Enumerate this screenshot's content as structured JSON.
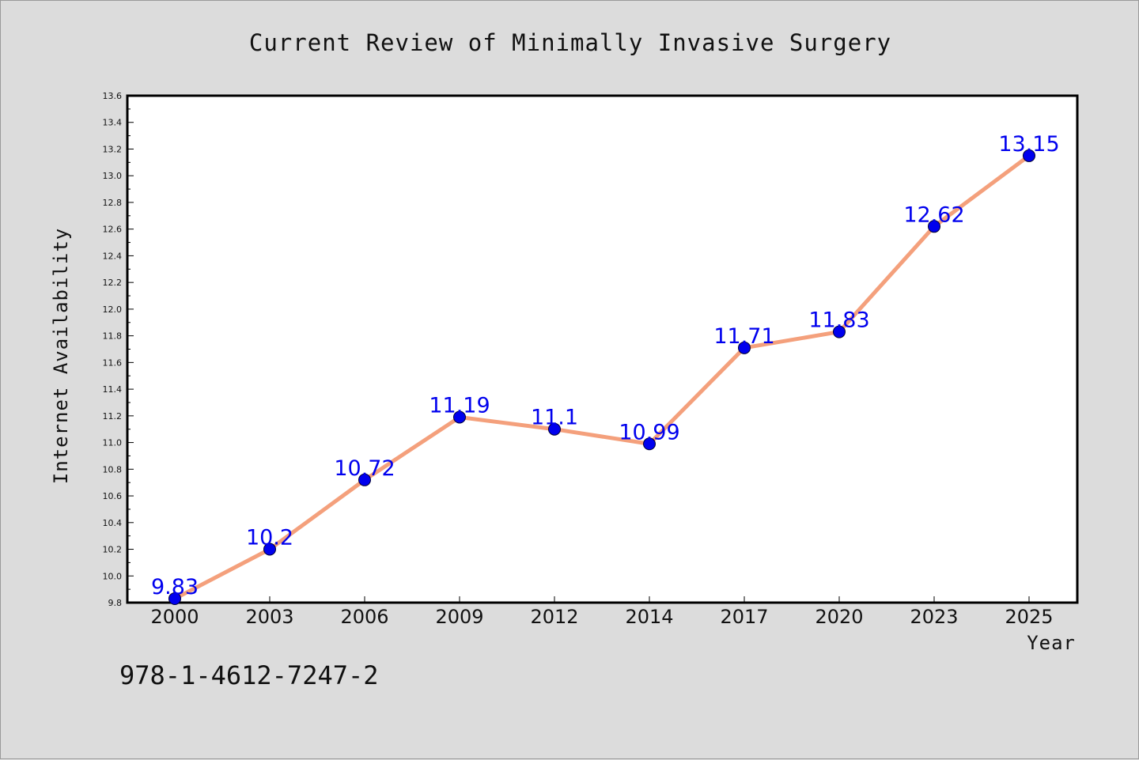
{
  "colors": {
    "background": "#dcdcdc",
    "plot_background": "#ffffff",
    "line": "#f4a07c",
    "marker": "#0000ee",
    "data_label": "#0000ee"
  },
  "footnote": "978-1-4612-7247-2",
  "chart_data": {
    "type": "line",
    "title": "Current Review of Minimally Invasive Surgery",
    "xlabel": "Year",
    "ylabel": "Internet Availability",
    "categories": [
      "2000",
      "2003",
      "2006",
      "2009",
      "2012",
      "2014",
      "2017",
      "2020",
      "2023",
      "2025"
    ],
    "series": [
      {
        "values": [
          9.83,
          10.2,
          10.72,
          11.19,
          11.1,
          10.99,
          11.71,
          11.83,
          12.62,
          13.15
        ],
        "data_labels": [
          "9.83",
          "10.2",
          "10.72",
          "11.19",
          "11.1",
          "10.99",
          "11.71",
          "11.83",
          "12.62",
          "13.15"
        ]
      }
    ],
    "ylim": [
      9.8,
      13.6
    ],
    "yticks": [
      "9.8",
      "10.0",
      "10.2",
      "10.4",
      "10.6",
      "10.8",
      "11.0",
      "11.2",
      "11.4",
      "11.6",
      "11.8",
      "12.0",
      "12.2",
      "12.4",
      "12.6",
      "12.8",
      "13.0",
      "13.2",
      "13.4",
      "13.6"
    ],
    "grid": false,
    "legend": "none"
  }
}
